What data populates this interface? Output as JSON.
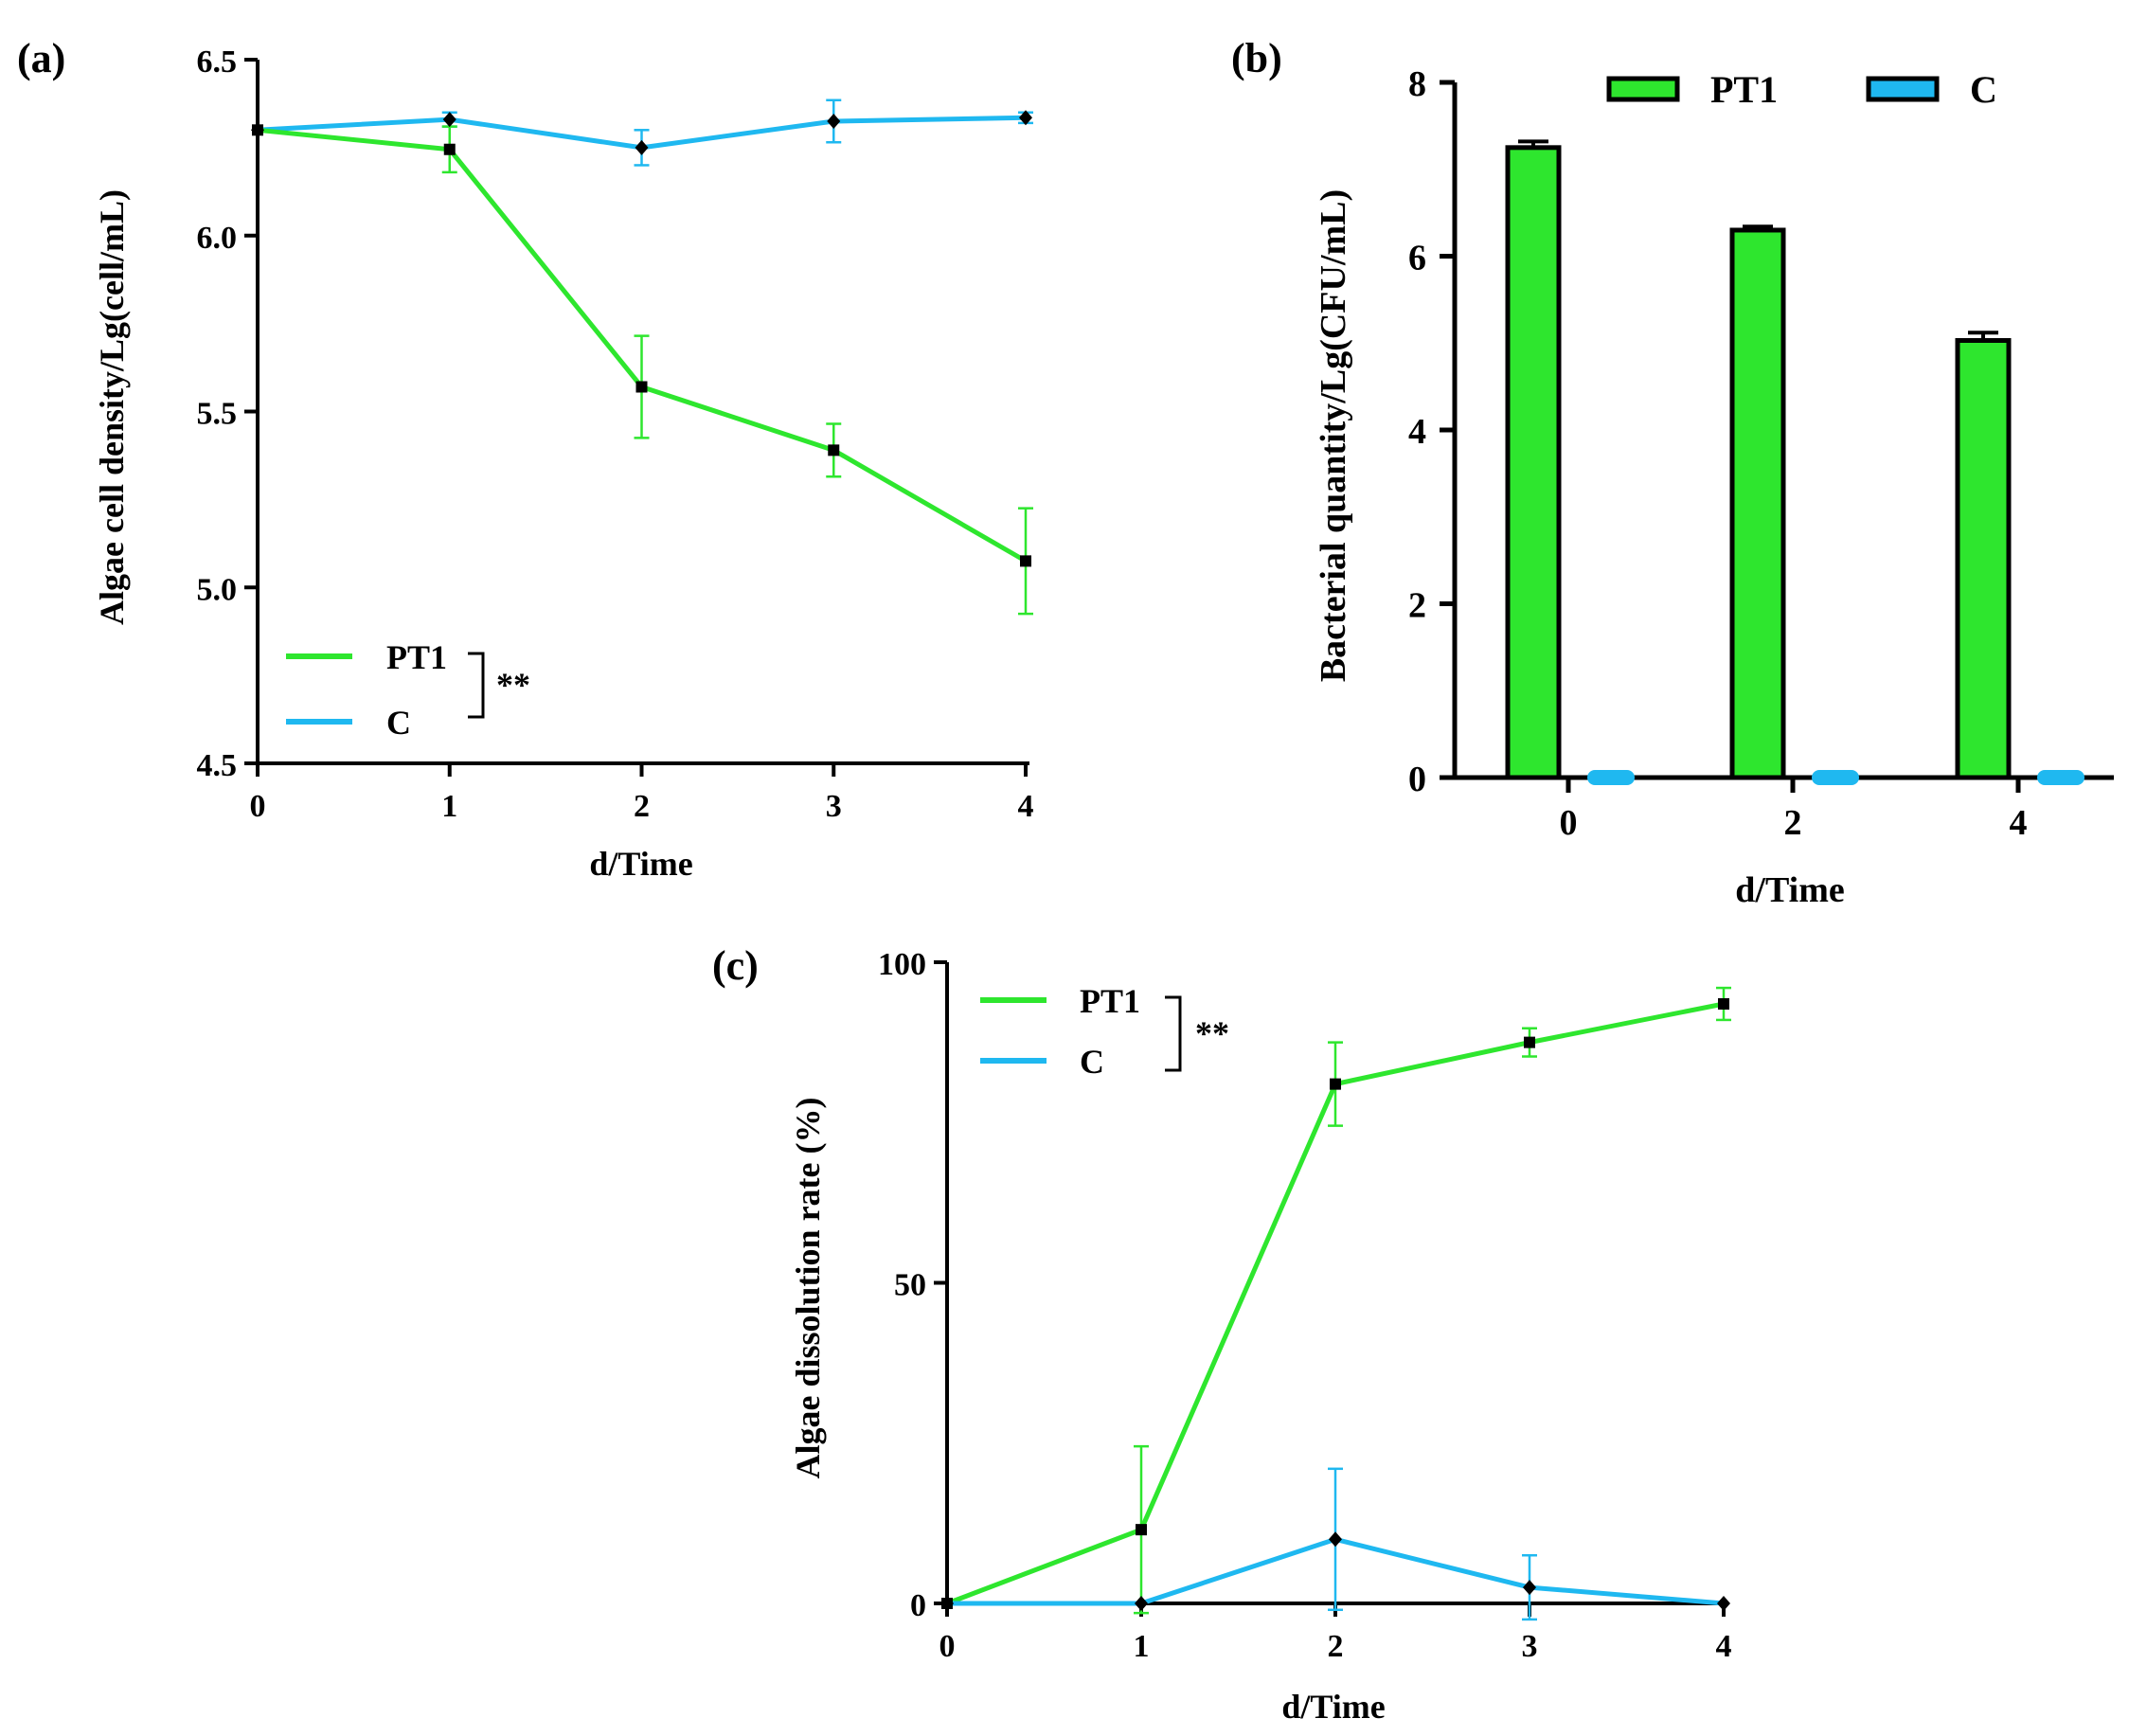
{
  "colors": {
    "pt1": "#2ee62e",
    "c": "#1fb8f0",
    "axis": "#000000",
    "marker": "#000000"
  },
  "chart_data": [
    {
      "id": "a",
      "panel_label": "(a)",
      "type": "line",
      "title": "",
      "xlabel": "d/Time",
      "ylabel": "Algae cell density/Lg(cell/mL)",
      "x": [
        0,
        1,
        2,
        3,
        4
      ],
      "xticks": [
        "0",
        "1",
        "2",
        "3",
        "4"
      ],
      "yticks": [
        "4.5",
        "5.0",
        "5.5",
        "6.0",
        "6.5"
      ],
      "ylim": [
        4.5,
        6.5
      ],
      "series": [
        {
          "name": "PT1",
          "color_key": "pt1",
          "marker": "square",
          "values": [
            6.3,
            6.245,
            5.57,
            5.39,
            5.075
          ],
          "errors": [
            0,
            0.065,
            0.145,
            0.075,
            0.15
          ]
        },
        {
          "name": "C",
          "color_key": "c",
          "marker": "diamond",
          "values": [
            6.3,
            6.33,
            6.25,
            6.325,
            6.335
          ],
          "errors": [
            0,
            0.02,
            0.05,
            0.06,
            0.015
          ]
        }
      ],
      "significance": "**",
      "legend_position": "bottom-left"
    },
    {
      "id": "b",
      "panel_label": "(b)",
      "type": "bar",
      "title": "",
      "xlabel": "d/Time",
      "ylabel": "Bacterial quantity/Lg(CFU/mL)",
      "categories": [
        "0",
        "2",
        "4"
      ],
      "yticks": [
        "0",
        "2",
        "4",
        "6",
        "8"
      ],
      "ylim": [
        0,
        8
      ],
      "series": [
        {
          "name": "PT1",
          "color_key": "pt1",
          "values": [
            7.25,
            6.3,
            5.03
          ],
          "errors": [
            0.07,
            0.04,
            0.09
          ]
        },
        {
          "name": "C",
          "color_key": "c",
          "values": [
            0,
            0,
            0
          ],
          "errors": [
            0,
            0,
            0
          ]
        }
      ],
      "legend_position": "top"
    },
    {
      "id": "c",
      "panel_label": "(c)",
      "type": "line",
      "title": "",
      "xlabel": "d/Time",
      "ylabel": "Algae dissolution rate (%)",
      "x": [
        0,
        1,
        2,
        3,
        4
      ],
      "xticks": [
        "0",
        "1",
        "2",
        "3",
        "4"
      ],
      "yticks": [
        "0",
        "50",
        "100"
      ],
      "ylim": [
        0,
        100
      ],
      "series": [
        {
          "name": "PT1",
          "color_key": "pt1",
          "marker": "square",
          "values": [
            0,
            11.5,
            81,
            87.5,
            93.5
          ],
          "errors": [
            0,
            13,
            6.5,
            2.2,
            2.5
          ]
        },
        {
          "name": "C",
          "color_key": "c",
          "marker": "diamond",
          "values": [
            0,
            0,
            10,
            2.5,
            0
          ],
          "errors": [
            0,
            0,
            11,
            5,
            0
          ]
        }
      ],
      "significance": "**",
      "legend_position": "top-left"
    }
  ]
}
